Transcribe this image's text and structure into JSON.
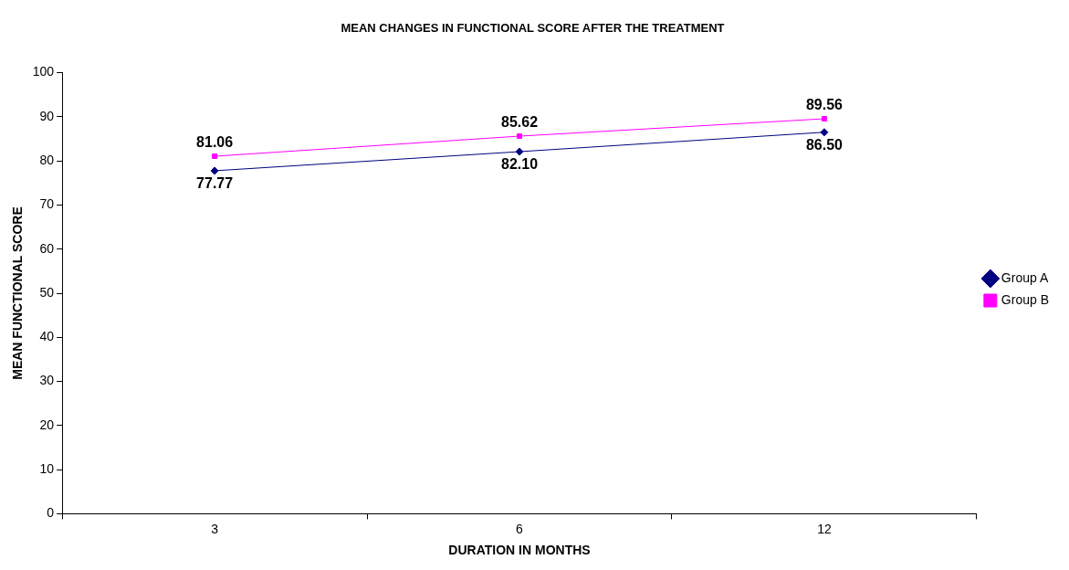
{
  "chart_data": {
    "type": "line",
    "title": "MEAN CHANGES IN FUNCTIONAL SCORE AFTER THE TREATMENT",
    "xlabel": "DURATION IN MONTHS",
    "ylabel": "MEAN FUNCTIONAL SCORE",
    "categories": [
      "3",
      "6",
      "12"
    ],
    "series": [
      {
        "name": "Group A",
        "color": "#000080",
        "marker": "diamond",
        "values": [
          77.77,
          82.1,
          86.5
        ],
        "value_labels": [
          "77.77",
          "82.10",
          "86.50"
        ]
      },
      {
        "name": "Group B",
        "color": "#ff00ff",
        "marker": "square",
        "values": [
          81.06,
          85.62,
          89.56
        ],
        "value_labels": [
          "81.06",
          "85.62",
          "89.56"
        ]
      }
    ],
    "ylim": [
      0,
      100
    ],
    "yticks": [
      0,
      10,
      20,
      30,
      40,
      50,
      60,
      70,
      80,
      90,
      100
    ],
    "grid": false,
    "legend": "right",
    "line_style": "solid"
  }
}
